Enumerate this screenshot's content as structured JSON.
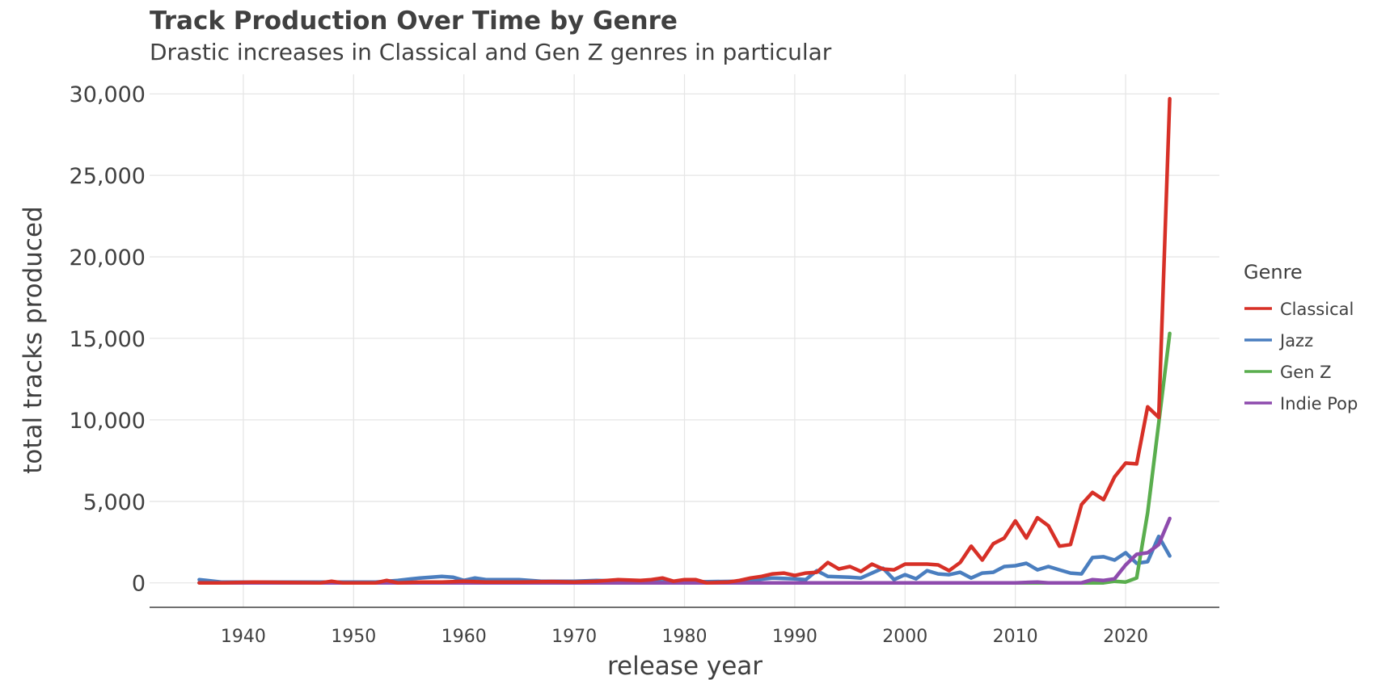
{
  "chart_data": {
    "type": "line",
    "title": "Track Production Over Time by Genre",
    "subtitle": "Drastic increases in Classical and Gen Z genres in particular",
    "xlabel": "release year",
    "ylabel": "total tracks produced",
    "xlim": [
      1931.5,
      2028.5
    ],
    "ylim": [
      -1500,
      31200
    ],
    "x_ticks": [
      1940,
      1950,
      1960,
      1970,
      1980,
      1990,
      2000,
      2010,
      2020
    ],
    "x_tick_labels": [
      "1940",
      "1950",
      "1960",
      "1970",
      "1980",
      "1990",
      "2000",
      "2010",
      "2020"
    ],
    "y_ticks": [
      0,
      5000,
      10000,
      15000,
      20000,
      25000,
      30000
    ],
    "y_tick_labels": [
      "0",
      "5,000",
      "10,000",
      "15,000",
      "20,000",
      "25,000",
      "30,000"
    ],
    "grid": true,
    "legend_title": "Genre",
    "legend_position": "right",
    "series": [
      {
        "name": "Classical",
        "color": "#d73027",
        "x": [
          1936,
          1938,
          1941,
          1944,
          1947,
          1948,
          1949,
          1951,
          1952,
          1953,
          1954,
          1956,
          1958,
          1960,
          1962,
          1965,
          1968,
          1970,
          1972,
          1974,
          1976,
          1977,
          1978,
          1979,
          1980,
          1981,
          1982,
          1984,
          1985,
          1986,
          1987,
          1988,
          1989,
          1990,
          1991,
          1992,
          1993,
          1994,
          1995,
          1996,
          1997,
          1998,
          1999,
          2000,
          2001,
          2002,
          2003,
          2004,
          2005,
          2006,
          2007,
          2008,
          2009,
          2010,
          2011,
          2012,
          2013,
          2014,
          2015,
          2016,
          2017,
          2018,
          2019,
          2020,
          2021,
          2022,
          2023,
          2024
        ],
        "values": [
          0,
          0,
          50,
          20,
          0,
          100,
          0,
          0,
          0,
          150,
          0,
          50,
          50,
          100,
          50,
          50,
          80,
          50,
          100,
          200,
          150,
          200,
          300,
          100,
          200,
          200,
          0,
          50,
          150,
          300,
          400,
          550,
          600,
          450,
          600,
          650,
          1250,
          850,
          1000,
          700,
          1150,
          850,
          800,
          1150,
          1150,
          1150,
          1100,
          750,
          1250,
          2250,
          1400,
          2400,
          2750,
          3800,
          2750,
          4000,
          3500,
          2250,
          2350,
          4800,
          5550,
          5100,
          6500,
          7350,
          7300,
          10800,
          10150,
          29700
        ]
      },
      {
        "name": "Jazz",
        "color": "#4a7ebf",
        "x": [
          1936,
          1938,
          1940,
          1945,
          1950,
          1952,
          1954,
          1956,
          1958,
          1959,
          1960,
          1961,
          1962,
          1965,
          1967,
          1970,
          1972,
          1975,
          1980,
          1985,
          1988,
          1990,
          1991,
          1992,
          1993,
          1995,
          1996,
          1997,
          1998,
          1999,
          2000,
          2001,
          2002,
          2003,
          2004,
          2005,
          2006,
          2007,
          2008,
          2009,
          2010,
          2011,
          2012,
          2013,
          2014,
          2015,
          2016,
          2017,
          2018,
          2019,
          2020,
          2021,
          2022,
          2023,
          2024
        ],
        "values": [
          200,
          50,
          50,
          50,
          50,
          50,
          150,
          300,
          400,
          350,
          150,
          300,
          200,
          200,
          100,
          100,
          150,
          100,
          50,
          100,
          300,
          250,
          200,
          750,
          400,
          350,
          300,
          600,
          900,
          200,
          500,
          250,
          750,
          550,
          500,
          650,
          300,
          600,
          650,
          1000,
          1050,
          1200,
          800,
          1000,
          800,
          600,
          550,
          1550,
          1600,
          1400,
          1850,
          1200,
          1300,
          2850,
          1650
        ]
      },
      {
        "name": "Gen Z",
        "color": "#5aae4e",
        "x": [
          1936,
          1950,
          1970,
          1990,
          2005,
          2010,
          2015,
          2016,
          2017,
          2018,
          2019,
          2020,
          2021,
          2022,
          2023,
          2024
        ],
        "values": [
          0,
          0,
          0,
          0,
          0,
          0,
          0,
          0,
          0,
          0,
          100,
          50,
          300,
          4300,
          9800,
          15300
        ]
      },
      {
        "name": "Indie Pop",
        "color": "#8e4bad",
        "x": [
          1936,
          1950,
          1970,
          1990,
          2005,
          2010,
          2012,
          2013,
          2015,
          2016,
          2017,
          2018,
          2019,
          2020,
          2021,
          2022,
          2023,
          2024
        ],
        "values": [
          0,
          0,
          0,
          0,
          0,
          0,
          50,
          0,
          0,
          0,
          200,
          150,
          250,
          1100,
          1750,
          1850,
          2350,
          3950
        ]
      }
    ]
  }
}
